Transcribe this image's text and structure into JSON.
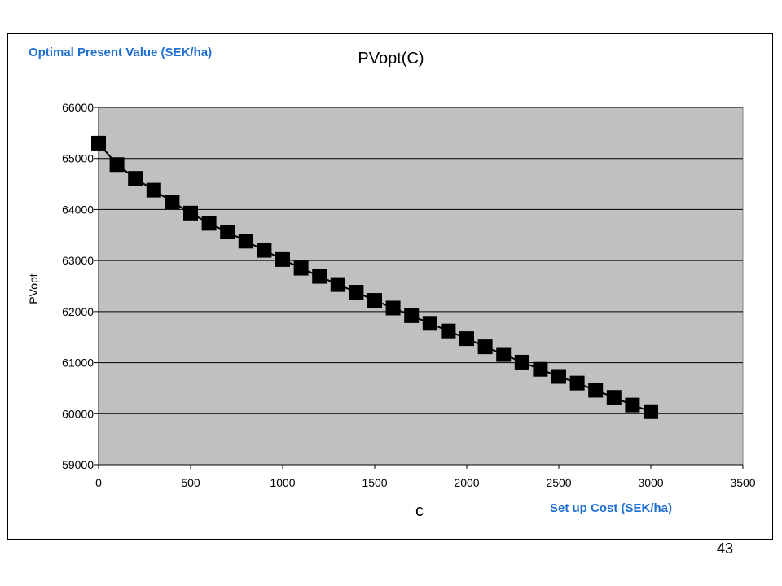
{
  "page_number": "43",
  "annotations": {
    "left": "Optimal Present Value  (SEK/ha)",
    "right": "Set up Cost (SEK/ha)"
  },
  "colors": {
    "plot_background": "#c0c0c0",
    "gridline": "#000000",
    "marker": "#000000",
    "annotation": "#1f6fd1"
  },
  "chart_data": {
    "type": "line",
    "title": "PVopt(C)",
    "xlabel": "c",
    "ylabel": "PVopt",
    "xlim": [
      0,
      3500
    ],
    "ylim": [
      59000,
      66000
    ],
    "x_ticks": [
      0,
      500,
      1000,
      1500,
      2000,
      2500,
      3000,
      3500
    ],
    "y_ticks": [
      59000,
      60000,
      61000,
      62000,
      63000,
      64000,
      65000,
      66000
    ],
    "grid": "horizontal",
    "legend": "none",
    "series": [
      {
        "marker": "square",
        "x": [
          0,
          100,
          200,
          300,
          400,
          500,
          600,
          700,
          800,
          900,
          1000,
          1100,
          1200,
          1300,
          1400,
          1500,
          1600,
          1700,
          1800,
          1900,
          2000,
          2100,
          2200,
          2300,
          2400,
          2500,
          2600,
          2700,
          2800,
          2900,
          3000
        ],
        "y": [
          65300,
          64880,
          64610,
          64380,
          64150,
          63930,
          63730,
          63560,
          63380,
          63200,
          63020,
          62850,
          62690,
          62530,
          62380,
          62220,
          62070,
          61920,
          61770,
          61620,
          61470,
          61310,
          61160,
          61010,
          60870,
          60730,
          60600,
          60460,
          60320,
          60170,
          60040
        ]
      }
    ]
  }
}
